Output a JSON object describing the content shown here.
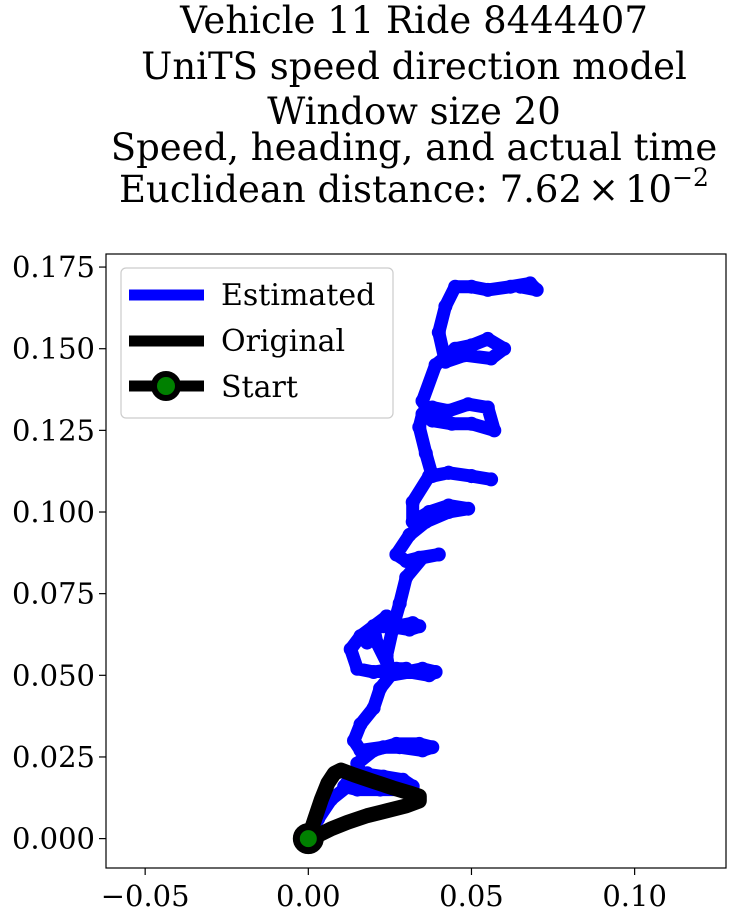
{
  "chart_data": {
    "type": "line",
    "title_lines": [
      "Vehicle 11 Ride 8444407",
      "UniTS speed direction model",
      "Window size 20",
      "Speed, heading, and actual time",
      "Euclidean distance: "
    ],
    "distance_mantissa": "7.62",
    "distance_times": "×",
    "distance_base": "10",
    "distance_exponent": "−2",
    "xlabel": "",
    "ylabel": "",
    "xlim": [
      -0.062,
      0.128
    ],
    "ylim": [
      -0.009,
      0.179
    ],
    "xticks": [
      {
        "value": -0.05,
        "label": "−0.05"
      },
      {
        "value": 0.0,
        "label": "0.00"
      },
      {
        "value": 0.05,
        "label": "0.05"
      },
      {
        "value": 0.1,
        "label": "0.10"
      }
    ],
    "yticks": [
      {
        "value": 0.0,
        "label": "0.000"
      },
      {
        "value": 0.025,
        "label": "0.025"
      },
      {
        "value": 0.05,
        "label": "0.050"
      },
      {
        "value": 0.075,
        "label": "0.075"
      },
      {
        "value": 0.1,
        "label": "0.100"
      },
      {
        "value": 0.125,
        "label": "0.125"
      },
      {
        "value": 0.15,
        "label": "0.150"
      },
      {
        "value": 0.175,
        "label": "0.175"
      }
    ],
    "grid": false,
    "legend_position": "top-left",
    "series": [
      {
        "name": "Estimated",
        "color": "#0000ff",
        "x": [
          0.0,
          0.003,
          0.007,
          0.012,
          0.015,
          0.018,
          0.013,
          0.011,
          0.015,
          0.022,
          0.03,
          0.032,
          0.029,
          0.023,
          0.016,
          0.015,
          0.02,
          0.027,
          0.034,
          0.038,
          0.035,
          0.028,
          0.023,
          0.016,
          0.014,
          0.016,
          0.02,
          0.022,
          0.026,
          0.03,
          0.027,
          0.02,
          0.015,
          0.013,
          0.016,
          0.02,
          0.024,
          0.019,
          0.018,
          0.02,
          0.024,
          0.023,
          0.027,
          0.032,
          0.034,
          0.031,
          0.025,
          0.02,
          0.021,
          0.025,
          0.03,
          0.035,
          0.039,
          0.037,
          0.031,
          0.025,
          0.024,
          0.026,
          0.028,
          0.03,
          0.035,
          0.04,
          0.034,
          0.03,
          0.027,
          0.031,
          0.036,
          0.043,
          0.049,
          0.043,
          0.037,
          0.032,
          0.032,
          0.037,
          0.043,
          0.05,
          0.056,
          0.05,
          0.043,
          0.038,
          0.036,
          0.034,
          0.035,
          0.038,
          0.043,
          0.049,
          0.055,
          0.057,
          0.05,
          0.044,
          0.038,
          0.035,
          0.039,
          0.045,
          0.05,
          0.055,
          0.06,
          0.056,
          0.048,
          0.042,
          0.04,
          0.042,
          0.045,
          0.05,
          0.055,
          0.062,
          0.068,
          0.07,
          0.065
        ],
        "y": [
          0.0,
          0.006,
          0.012,
          0.016,
          0.018,
          0.02,
          0.019,
          0.016,
          0.015,
          0.015,
          0.015,
          0.016,
          0.018,
          0.019,
          0.02,
          0.023,
          0.027,
          0.029,
          0.029,
          0.028,
          0.027,
          0.028,
          0.028,
          0.027,
          0.03,
          0.035,
          0.04,
          0.046,
          0.051,
          0.052,
          0.052,
          0.051,
          0.052,
          0.058,
          0.062,
          0.065,
          0.068,
          0.064,
          0.06,
          0.064,
          0.068,
          0.065,
          0.065,
          0.066,
          0.065,
          0.064,
          0.065,
          0.065,
          0.06,
          0.052,
          0.051,
          0.052,
          0.051,
          0.05,
          0.051,
          0.05,
          0.056,
          0.065,
          0.072,
          0.08,
          0.086,
          0.087,
          0.086,
          0.085,
          0.087,
          0.093,
          0.097,
          0.1,
          0.101,
          0.102,
          0.1,
          0.097,
          0.103,
          0.111,
          0.112,
          0.111,
          0.11,
          0.111,
          0.112,
          0.111,
          0.118,
          0.126,
          0.13,
          0.132,
          0.131,
          0.133,
          0.132,
          0.125,
          0.127,
          0.127,
          0.128,
          0.134,
          0.145,
          0.15,
          0.151,
          0.153,
          0.15,
          0.147,
          0.148,
          0.146,
          0.155,
          0.163,
          0.169,
          0.169,
          0.168,
          0.169,
          0.17,
          0.168,
          0.169
        ]
      },
      {
        "name": "Original",
        "color": "#000000",
        "x": [
          0.0,
          0.002,
          0.004,
          0.006,
          0.008,
          0.01,
          0.014,
          0.02,
          0.026,
          0.031,
          0.034,
          0.034,
          0.03,
          0.024,
          0.018,
          0.012,
          0.007,
          0.003,
          0.0
        ],
        "y": [
          0.0,
          0.006,
          0.012,
          0.017,
          0.02,
          0.021,
          0.0195,
          0.0175,
          0.0155,
          0.014,
          0.013,
          0.0115,
          0.01,
          0.0085,
          0.007,
          0.005,
          0.003,
          0.001,
          0.0
        ]
      }
    ],
    "start": {
      "name": "Start",
      "x": 0.0,
      "y": 0.0,
      "fill": "#008000",
      "edge": "#000000"
    }
  }
}
